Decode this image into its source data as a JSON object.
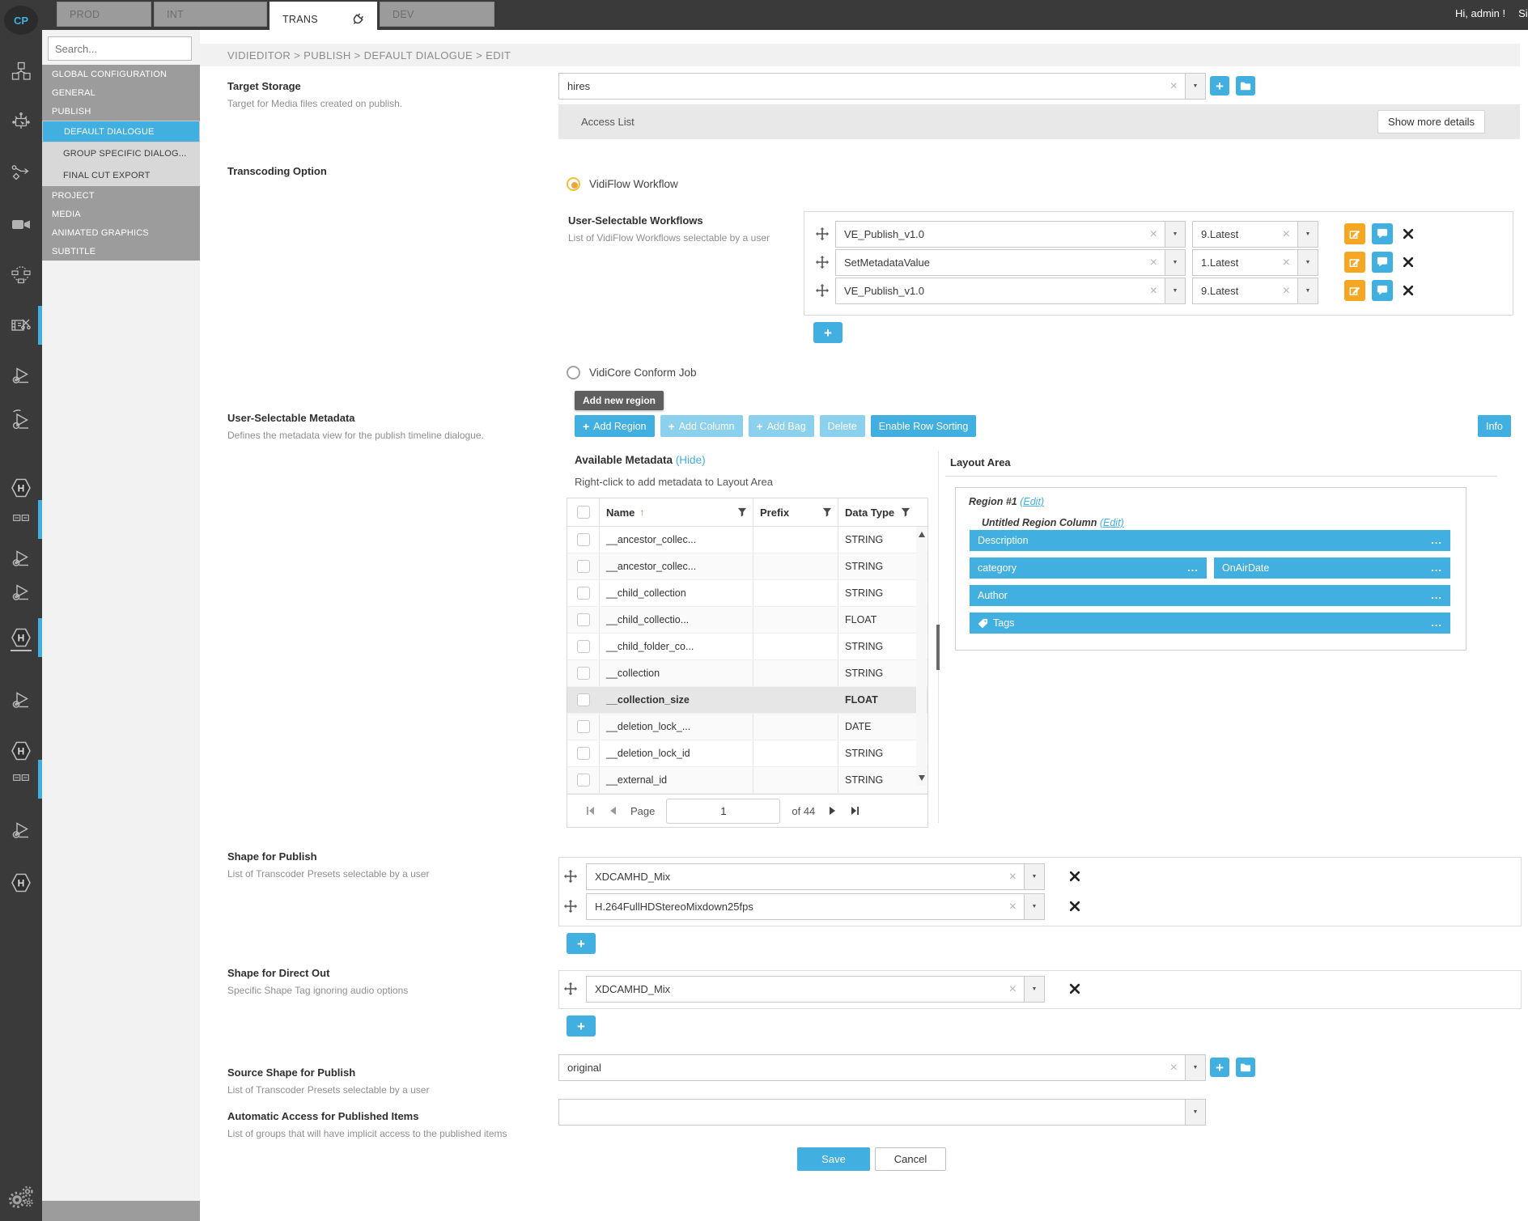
{
  "app": {
    "logo": "CP",
    "greeting": "Hi, admin !",
    "signout_label": "Sign",
    "tabs": [
      {
        "label": "PROD",
        "active": false
      },
      {
        "label": "INT",
        "active": false
      },
      {
        "label": "TRANS",
        "active": true,
        "icon": "plug-icon"
      },
      {
        "label": "DEV",
        "active": false
      }
    ]
  },
  "rail": {
    "icons": [
      {
        "name": "modules-cubes-icon"
      },
      {
        "name": "configure-device-icon"
      },
      {
        "name": "workflow-icon"
      },
      {
        "name": "video-camera-icon"
      },
      {
        "name": "collaboration-icon"
      },
      {
        "name": "video-edit-icon",
        "indicator": true
      },
      {
        "name": "media-player-icon"
      },
      {
        "name": "media-player-alt-icon"
      },
      {
        "name": "helmut-hexagon-icon"
      },
      {
        "name": "timeline-icon",
        "indicator": true
      },
      {
        "name": "media-player-icon"
      },
      {
        "name": "media-player-icon"
      },
      {
        "name": "helmut-hexagon-icon",
        "underline": true,
        "indicator": true
      },
      {
        "name": "media-player-icon"
      },
      {
        "name": "helmut-hexagon-icon"
      },
      {
        "name": "timeline-icon",
        "indicator": true
      },
      {
        "name": "media-player-icon"
      },
      {
        "name": "helmut-hexagon-icon"
      },
      {
        "name": "settings-gears-icon"
      }
    ]
  },
  "sidebar": {
    "search_placeholder": "Search...",
    "items": [
      {
        "label": "GLOBAL CONFIGURATION",
        "type": "group"
      },
      {
        "label": "GENERAL",
        "type": "group"
      },
      {
        "label": "PUBLISH",
        "type": "group"
      },
      {
        "label": "DEFAULT DIALOGUE",
        "type": "sub",
        "selected": true
      },
      {
        "label": "GROUP SPECIFIC DIALOG...",
        "type": "sub"
      },
      {
        "label": "FINAL CUT EXPORT",
        "type": "sub"
      },
      {
        "label": "PROJECT",
        "type": "group"
      },
      {
        "label": "MEDIA",
        "type": "group"
      },
      {
        "label": "ANIMATED GRAPHICS",
        "type": "group"
      },
      {
        "label": "SUBTITLE",
        "type": "group"
      }
    ]
  },
  "breadcrumb": "VIDIEDITOR > PUBLISH > DEFAULT DIALOGUE > EDIT",
  "form": {
    "target_storage": {
      "label": "Target Storage",
      "hint": "Target for Media files created on publish.",
      "value": "hires"
    },
    "access_list": {
      "label": "Access List",
      "details_button": "Show more details"
    },
    "transcoding": {
      "label": "Transcoding Option",
      "vidiflow_option": "VidiFlow Workflow",
      "vidicore_option": "VidiCore Conform Job"
    },
    "workflows": {
      "label": "User-Selectable Workflows",
      "hint": "List of VidiFlow Workflows selectable by a user",
      "rows": [
        {
          "name": "VE_Publish_v1.0",
          "version": "9.Latest"
        },
        {
          "name": "SetMetadataValue",
          "version": "1.Latest"
        },
        {
          "name": "VE_Publish_v1.0",
          "version": "9.Latest"
        }
      ]
    },
    "metadata": {
      "label": "User-Selectable Metadata",
      "hint": "Defines the metadata view for the publish timeline dialogue.",
      "tooltip": "Add new region",
      "toolbar": [
        {
          "label": "Add Region",
          "variant": "solid",
          "plus": true
        },
        {
          "label": "Add Column",
          "variant": "light",
          "plus": true
        },
        {
          "label": "Add Bag",
          "variant": "light",
          "plus": true
        },
        {
          "label": "Delete",
          "variant": "light",
          "plus": false
        },
        {
          "label": "Enable Row Sorting",
          "variant": "solid",
          "plus": false
        }
      ],
      "info_label": "Info",
      "available_metadata": {
        "title": "Available Metadata",
        "hide_link": "(Hide)",
        "instruction": "Right-click to add metadata to Layout Area",
        "columns": [
          "Name",
          "Prefix",
          "Data Type"
        ],
        "rows": [
          {
            "name": "__ancestor_collec...",
            "prefix": "",
            "type": "STRING",
            "highlighted": false
          },
          {
            "name": "__ancestor_collec...",
            "prefix": "",
            "type": "STRING",
            "highlighted": false
          },
          {
            "name": "__child_collection",
            "prefix": "",
            "type": "STRING",
            "highlighted": false
          },
          {
            "name": "__child_collectio...",
            "prefix": "",
            "type": "FLOAT",
            "highlighted": false
          },
          {
            "name": "__child_folder_co...",
            "prefix": "",
            "type": "STRING",
            "highlighted": false
          },
          {
            "name": "__collection",
            "prefix": "",
            "type": "STRING",
            "highlighted": false
          },
          {
            "name": "__collection_size",
            "prefix": "",
            "type": "FLOAT",
            "highlighted": true
          },
          {
            "name": "__deletion_lock_...",
            "prefix": "",
            "type": "DATE",
            "highlighted": false
          },
          {
            "name": "__deletion_lock_id",
            "prefix": "",
            "type": "STRING",
            "highlighted": false
          },
          {
            "name": "__external_id",
            "prefix": "",
            "type": "STRING",
            "highlighted": false
          }
        ],
        "pagination": {
          "page_label": "Page",
          "page_value": "1",
          "total_label": "of 44"
        }
      },
      "layout_area": {
        "title": "Layout Area",
        "region_label": "Region #1",
        "region_edit": "(Edit)",
        "column_label": "Untitled Region Column",
        "column_edit": "(Edit)",
        "fields": [
          {
            "label": "Description",
            "width": "full"
          },
          {
            "label": "category",
            "width": "half"
          },
          {
            "label": "OnAirDate",
            "width": "half"
          },
          {
            "label": "Author",
            "width": "full"
          },
          {
            "label": "Tags",
            "width": "full",
            "icon": "tag-icon"
          }
        ]
      }
    },
    "shape_for_publish": {
      "label": "Shape for Publish",
      "hint": "List of Transcoder Presets selectable by a user",
      "rows": [
        "XDCAMHD_Mix",
        "H.264FullHDStereoMixdown25fps"
      ]
    },
    "shape_for_direct_out": {
      "label": "Shape for Direct Out",
      "hint": "Specific Shape Tag ignoring audio options",
      "rows": [
        "XDCAMHD_Mix"
      ]
    },
    "source_shape": {
      "label": "Source Shape for Publish",
      "hint": "List of Transcoder Presets selectable by a user",
      "value": "original"
    },
    "automatic_access": {
      "label": "Automatic Access for Published Items",
      "hint": "List of groups that will have implicit access to the published items",
      "value": ""
    },
    "save_label": "Save",
    "cancel_label": "Cancel"
  },
  "colors": {
    "accent_blue": "#41AFE0",
    "accent_blue_light": "#8BD0ED",
    "edit_orange": "#F5A623",
    "radio_ring_yellow": "#EFC13B",
    "radio_dot_orange": "#F0A53C",
    "rail_dark": "#3A3A3A",
    "nav_gray": "#9C9C9C"
  }
}
